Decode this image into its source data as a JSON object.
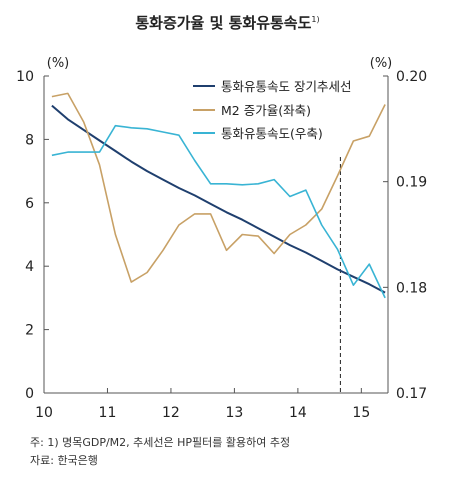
{
  "title": "통화증가율 및 통화유통속도",
  "title_footnote": "1)",
  "footnote": "주: 1) 명목GDP/M2, 추세선은 HP필터를 활용하여 추정",
  "source": "자료: 한국은행",
  "colors": {
    "trend": "#1f3f6e",
    "m2": "#c8a166",
    "velocity": "#39b4d4",
    "axis": "#555555"
  },
  "chart_data": {
    "type": "line",
    "x_tick_labels": [
      "10",
      "11",
      "12",
      "13",
      "14",
      "15"
    ],
    "xlim": [
      2010.0,
      2015.42
    ],
    "left_axis": {
      "unit": "(%)",
      "ylim": [
        0,
        10
      ],
      "ticks": [
        "0",
        "2",
        "4",
        "6",
        "8",
        "10"
      ]
    },
    "right_axis": {
      "unit": "(%)",
      "ylim": [
        0.17,
        0.2
      ],
      "ticks": [
        "0.17",
        "0.18",
        "0.19",
        "0.20"
      ]
    },
    "reference_line": {
      "x": 2014.67,
      "style": "dashed"
    },
    "legend_position": "top-right",
    "series": [
      {
        "name": "통화유통속도 장기추세선",
        "axis": "right",
        "x": [
          2010.125,
          2010.375,
          2010.625,
          2010.875,
          2011.125,
          2011.375,
          2011.625,
          2011.875,
          2012.125,
          2012.375,
          2012.625,
          2012.875,
          2013.125,
          2013.375,
          2013.625,
          2013.875,
          2014.125,
          2014.375,
          2014.625,
          2014.875,
          2015.125,
          2015.375
        ],
        "values": [
          0.1972,
          0.1959,
          0.1949,
          0.1939,
          0.1929,
          0.1919,
          0.191,
          0.1902,
          0.1894,
          0.1887,
          0.1879,
          0.1871,
          0.1864,
          0.1856,
          0.1848,
          0.184,
          0.1833,
          0.1825,
          0.1817,
          0.181,
          0.1803,
          0.1795
        ]
      },
      {
        "name": "M2 증가율(좌축)",
        "axis": "left",
        "x": [
          2010.125,
          2010.375,
          2010.625,
          2010.875,
          2011.125,
          2011.375,
          2011.625,
          2011.875,
          2012.125,
          2012.375,
          2012.625,
          2012.875,
          2013.125,
          2013.375,
          2013.625,
          2013.875,
          2014.125,
          2014.375,
          2014.625,
          2014.875,
          2015.125,
          2015.375
        ],
        "values": [
          9.35,
          9.45,
          8.55,
          7.2,
          5.0,
          3.5,
          3.8,
          4.5,
          5.3,
          5.65,
          5.65,
          4.5,
          5.0,
          4.95,
          4.4,
          5.0,
          5.3,
          5.8,
          6.85,
          7.95,
          8.1,
          9.1
        ]
      },
      {
        "name": "통화유통속도(우축)",
        "axis": "right",
        "x": [
          2010.125,
          2010.375,
          2010.625,
          2010.875,
          2011.125,
          2011.375,
          2011.625,
          2011.875,
          2012.125,
          2012.375,
          2012.625,
          2012.875,
          2013.125,
          2013.375,
          2013.625,
          2013.875,
          2014.125,
          2014.375,
          2014.625,
          2014.875,
          2015.125,
          2015.375
        ],
        "values": [
          0.1925,
          0.1928,
          0.1928,
          0.1928,
          0.1953,
          0.1951,
          0.195,
          0.1947,
          0.1944,
          0.192,
          0.1898,
          0.1898,
          0.1897,
          0.1898,
          0.1902,
          0.1886,
          0.1892,
          0.1859,
          0.1836,
          0.1802,
          0.1822,
          0.179
        ]
      }
    ]
  }
}
